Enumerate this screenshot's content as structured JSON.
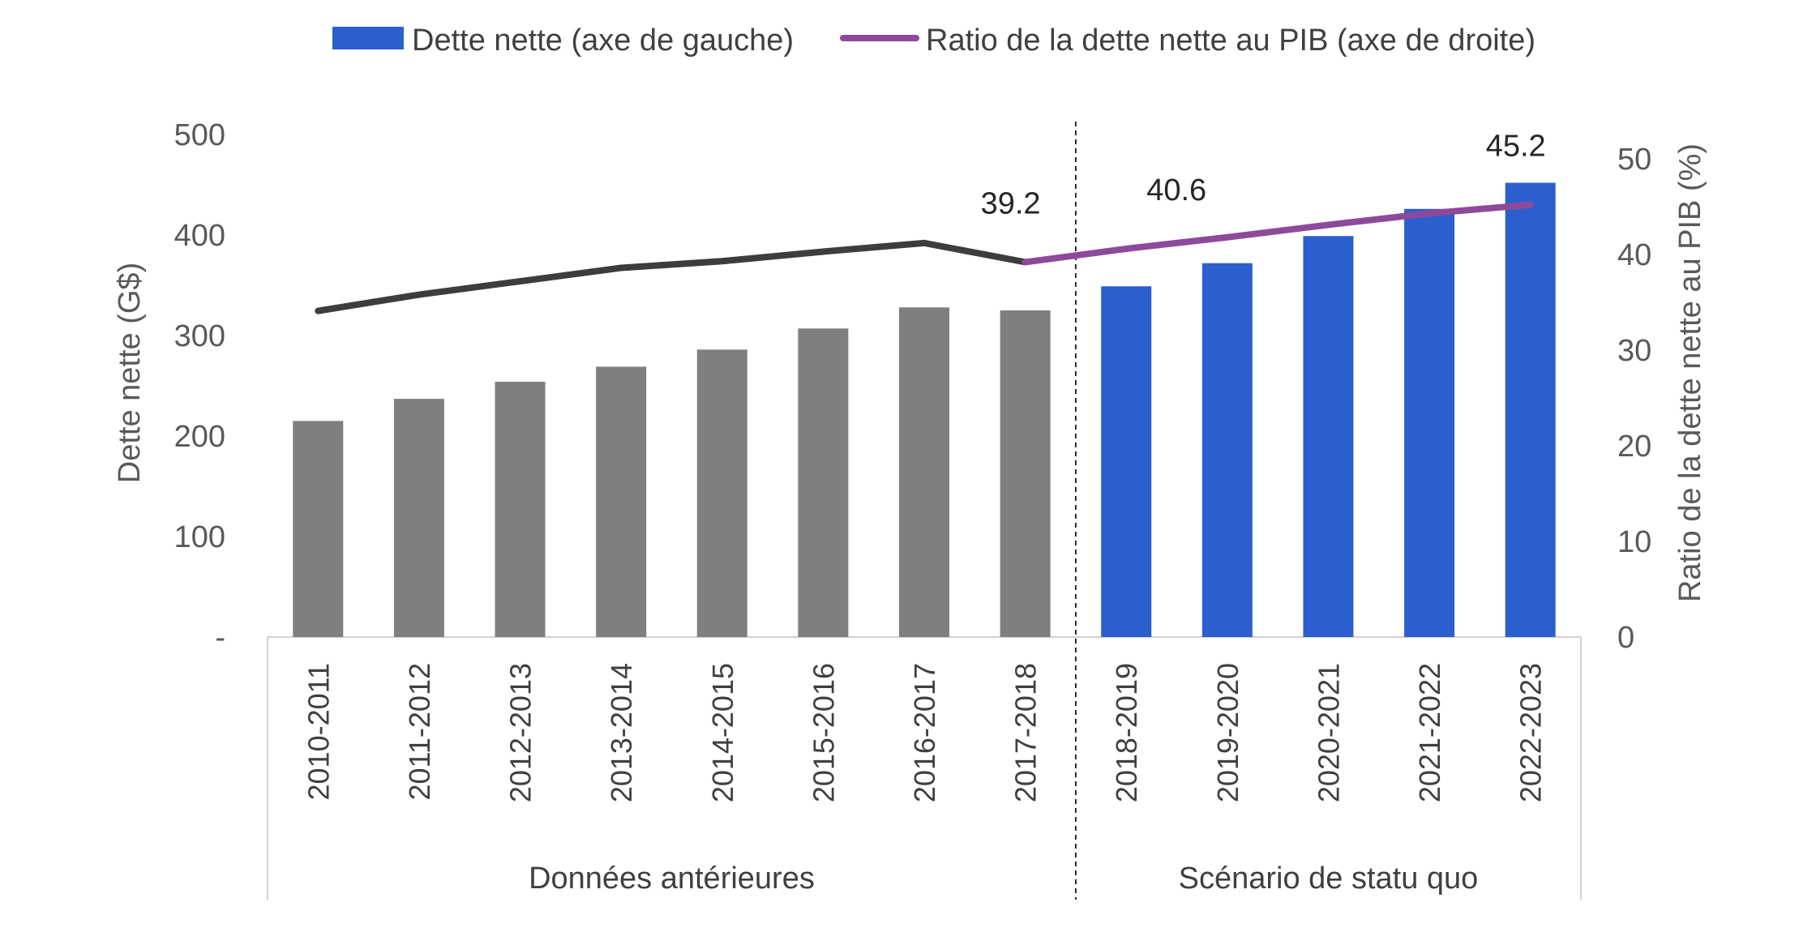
{
  "chart_data": {
    "type": "bar",
    "categories": [
      "2010-2011",
      "2011-2012",
      "2012-2013",
      "2013-2014",
      "2014-2015",
      "2015-2016",
      "2016-2017",
      "2017-2018",
      "2018-2019",
      "2019-2020",
      "2020-2021",
      "2021-2022",
      "2022-2023"
    ],
    "groups": [
      {
        "label": "Données antérieures",
        "from": 0,
        "to": 7
      },
      {
        "label": "Scénario de statu quo",
        "from": 8,
        "to": 12
      }
    ],
    "series": [
      {
        "name": "Dette nette (axe de gauche)",
        "type": "bar",
        "axis": "left",
        "values": [
          215,
          237,
          254,
          269,
          286,
          307,
          328,
          325,
          349,
          372,
          399,
          426,
          452
        ],
        "colors": [
          "#7f7f7f",
          "#7f7f7f",
          "#7f7f7f",
          "#7f7f7f",
          "#7f7f7f",
          "#7f7f7f",
          "#7f7f7f",
          "#7f7f7f",
          "#2b5fce",
          "#2b5fce",
          "#2b5fce",
          "#2b5fce",
          "#2b5fce"
        ]
      },
      {
        "name": "Ratio de la dette nette au PIB (axe de droite)",
        "type": "line",
        "axis": "right",
        "values": [
          34.1,
          35.8,
          37.2,
          38.6,
          39.3,
          40.3,
          41.2,
          39.2,
          40.6,
          41.8,
          43.1,
          44.3,
          45.2
        ],
        "color_history": "#3d3d3d",
        "color_projection": "#8e4a9a",
        "data_labels": [
          {
            "index": 7,
            "text": "39.2"
          },
          {
            "index": 8,
            "text": "40.6"
          },
          {
            "index": 12,
            "text": "45.2"
          }
        ]
      }
    ],
    "yleft": {
      "label": "Dette nette (G$)",
      "lim": [
        0,
        500
      ],
      "ticks": [
        "-",
        "100",
        "200",
        "300",
        "400",
        "500"
      ]
    },
    "yright": {
      "label": "Ratio de la dette nette au PIB (%)",
      "lim": [
        0,
        50
      ],
      "ticks": [
        "0",
        "10",
        "20",
        "30",
        "40",
        "50"
      ]
    },
    "legend_position": "top",
    "grid": false,
    "divider_after_index": 7
  }
}
